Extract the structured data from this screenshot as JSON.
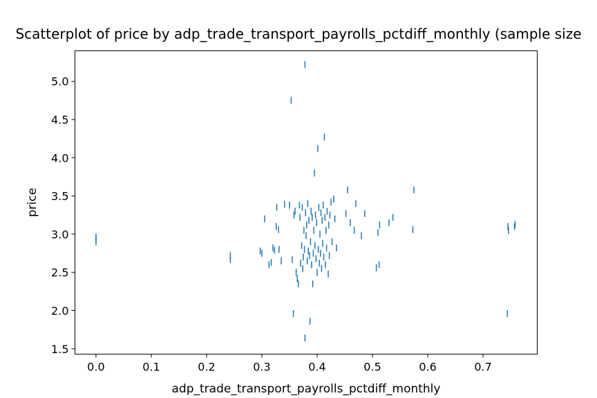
{
  "chart_data": {
    "type": "scatter",
    "title": "Scatterplot of price by adp_trade_transport_payrolls_pctdiff_monthly (sample size",
    "xlabel": "adp_trade_transport_payrolls_pctdiff_monthly",
    "ylabel": "price",
    "xlim": [
      -0.038,
      0.798
    ],
    "ylim": [
      1.43,
      5.4
    ],
    "x_ticks": [
      "0.0",
      "0.1",
      "0.2",
      "0.3",
      "0.4",
      "0.5",
      "0.6",
      "0.7"
    ],
    "x_tick_values": [
      0.0,
      0.1,
      0.2,
      0.3,
      0.4,
      0.5,
      0.6,
      0.7
    ],
    "y_ticks": [
      "1.5",
      "2.0",
      "2.5",
      "3.0",
      "3.5",
      "4.0",
      "4.5",
      "5.0"
    ],
    "y_tick_values": [
      1.5,
      2.0,
      2.5,
      3.0,
      3.5,
      4.0,
      4.5,
      5.0
    ],
    "marker": "vertical-tick",
    "color": "#1f77b4",
    "points": [
      [
        0.0,
        2.9
      ],
      [
        0.0,
        2.93
      ],
      [
        0.0,
        2.96
      ],
      [
        0.243,
        2.67
      ],
      [
        0.243,
        2.72
      ],
      [
        0.297,
        2.78
      ],
      [
        0.3,
        2.75
      ],
      [
        0.305,
        3.2
      ],
      [
        0.313,
        2.6
      ],
      [
        0.317,
        2.63
      ],
      [
        0.32,
        2.82
      ],
      [
        0.323,
        2.79
      ],
      [
        0.326,
        3.1
      ],
      [
        0.327,
        3.35
      ],
      [
        0.33,
        3.06
      ],
      [
        0.331,
        2.8
      ],
      [
        0.335,
        2.65
      ],
      [
        0.341,
        3.39
      ],
      [
        0.35,
        3.38
      ],
      [
        0.353,
        4.75
      ],
      [
        0.357,
        1.96
      ],
      [
        0.355,
        2.67
      ],
      [
        0.358,
        3.25
      ],
      [
        0.36,
        3.3
      ],
      [
        0.362,
        2.5
      ],
      [
        0.364,
        2.42
      ],
      [
        0.366,
        2.35
      ],
      [
        0.368,
        3.38
      ],
      [
        0.369,
        3.22
      ],
      [
        0.37,
        2.62
      ],
      [
        0.372,
        2.85
      ],
      [
        0.373,
        3.35
      ],
      [
        0.374,
        2.55
      ],
      [
        0.375,
        2.7
      ],
      [
        0.376,
        3.05
      ],
      [
        0.377,
        2.8
      ],
      [
        0.378,
        1.64
      ],
      [
        0.378,
        5.22
      ],
      [
        0.379,
        3.28
      ],
      [
        0.38,
        2.98
      ],
      [
        0.381,
        3.12
      ],
      [
        0.382,
        2.65
      ],
      [
        0.383,
        3.4
      ],
      [
        0.384,
        2.78
      ],
      [
        0.385,
        3.18
      ],
      [
        0.386,
        2.72
      ],
      [
        0.387,
        1.86
      ],
      [
        0.388,
        2.9
      ],
      [
        0.389,
        3.3
      ],
      [
        0.39,
        2.6
      ],
      [
        0.391,
        3.22
      ],
      [
        0.392,
        2.35
      ],
      [
        0.393,
        2.75
      ],
      [
        0.394,
        3.05
      ],
      [
        0.395,
        3.8
      ],
      [
        0.396,
        2.85
      ],
      [
        0.397,
        3.25
      ],
      [
        0.398,
        2.68
      ],
      [
        0.399,
        3.15
      ],
      [
        0.4,
        2.5
      ],
      [
        0.401,
        4.12
      ],
      [
        0.402,
        2.8
      ],
      [
        0.403,
        3.35
      ],
      [
        0.404,
        2.62
      ],
      [
        0.405,
        3.0
      ],
      [
        0.406,
        2.75
      ],
      [
        0.407,
        3.28
      ],
      [
        0.408,
        2.55
      ],
      [
        0.409,
        3.18
      ],
      [
        0.41,
        2.88
      ],
      [
        0.411,
        3.38
      ],
      [
        0.412,
        2.7
      ],
      [
        0.413,
        4.27
      ],
      [
        0.414,
        3.22
      ],
      [
        0.415,
        2.6
      ],
      [
        0.416,
        3.05
      ],
      [
        0.417,
        2.82
      ],
      [
        0.418,
        3.3
      ],
      [
        0.42,
        2.48
      ],
      [
        0.421,
        3.12
      ],
      [
        0.422,
        2.72
      ],
      [
        0.423,
        3.25
      ],
      [
        0.425,
        3.42
      ],
      [
        0.427,
        2.9
      ],
      [
        0.43,
        3.46
      ],
      [
        0.432,
        3.2
      ],
      [
        0.435,
        2.82
      ],
      [
        0.452,
        3.27
      ],
      [
        0.455,
        3.58
      ],
      [
        0.46,
        3.15
      ],
      [
        0.467,
        3.05
      ],
      [
        0.47,
        3.4
      ],
      [
        0.48,
        2.98
      ],
      [
        0.486,
        3.27
      ],
      [
        0.507,
        2.56
      ],
      [
        0.51,
        3.02
      ],
      [
        0.512,
        2.6
      ],
      [
        0.513,
        3.12
      ],
      [
        0.53,
        3.15
      ],
      [
        0.537,
        3.22
      ],
      [
        0.573,
        3.06
      ],
      [
        0.575,
        3.58
      ],
      [
        0.744,
        1.96
      ],
      [
        0.746,
        3.05
      ],
      [
        0.745,
        3.1
      ],
      [
        0.757,
        3.1
      ],
      [
        0.758,
        3.13
      ]
    ]
  }
}
